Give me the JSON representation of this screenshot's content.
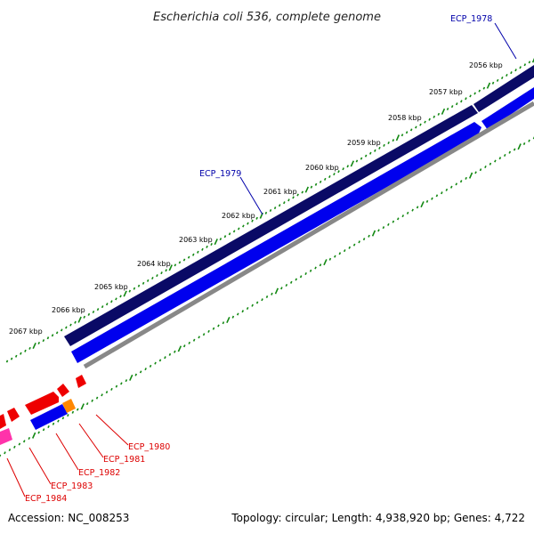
{
  "title": "Escherichia coli 536, complete genome",
  "footer": {
    "accession": "Accession: NC_008253",
    "summary": "Topology: circular; Length: 4,938,920 bp; Genes: 4,722"
  },
  "kbp_labels": [
    "2056 kbp",
    "2057 kbp",
    "2058 kbp",
    "2059 kbp",
    "2060 kbp",
    "2061 kbp",
    "2062 kbp",
    "2063 kbp",
    "2064 kbp",
    "2065 kbp",
    "2066 kbp",
    "2067 kbp"
  ],
  "genes": [
    {
      "name": "ECP_1978",
      "color": "#0000aa"
    },
    {
      "name": "ECP_1979",
      "color": "#0000aa"
    },
    {
      "name": "ECP_1980",
      "color": "#dd0000"
    },
    {
      "name": "ECP_1981",
      "color": "#dd0000"
    },
    {
      "name": "ECP_1982",
      "color": "#dd0000"
    },
    {
      "name": "ECP_1983",
      "color": "#dd0000"
    },
    {
      "name": "ECP_1984",
      "color": "#dd0000"
    }
  ],
  "colors": {
    "tick": "#118811",
    "forward_strand": "#0a0a66",
    "reverse_strand": "#0000ee",
    "backbone": "#888888",
    "red_feature": "#ee0000",
    "pink_feature": "#ff33aa",
    "orange_feature": "#ff8800"
  }
}
